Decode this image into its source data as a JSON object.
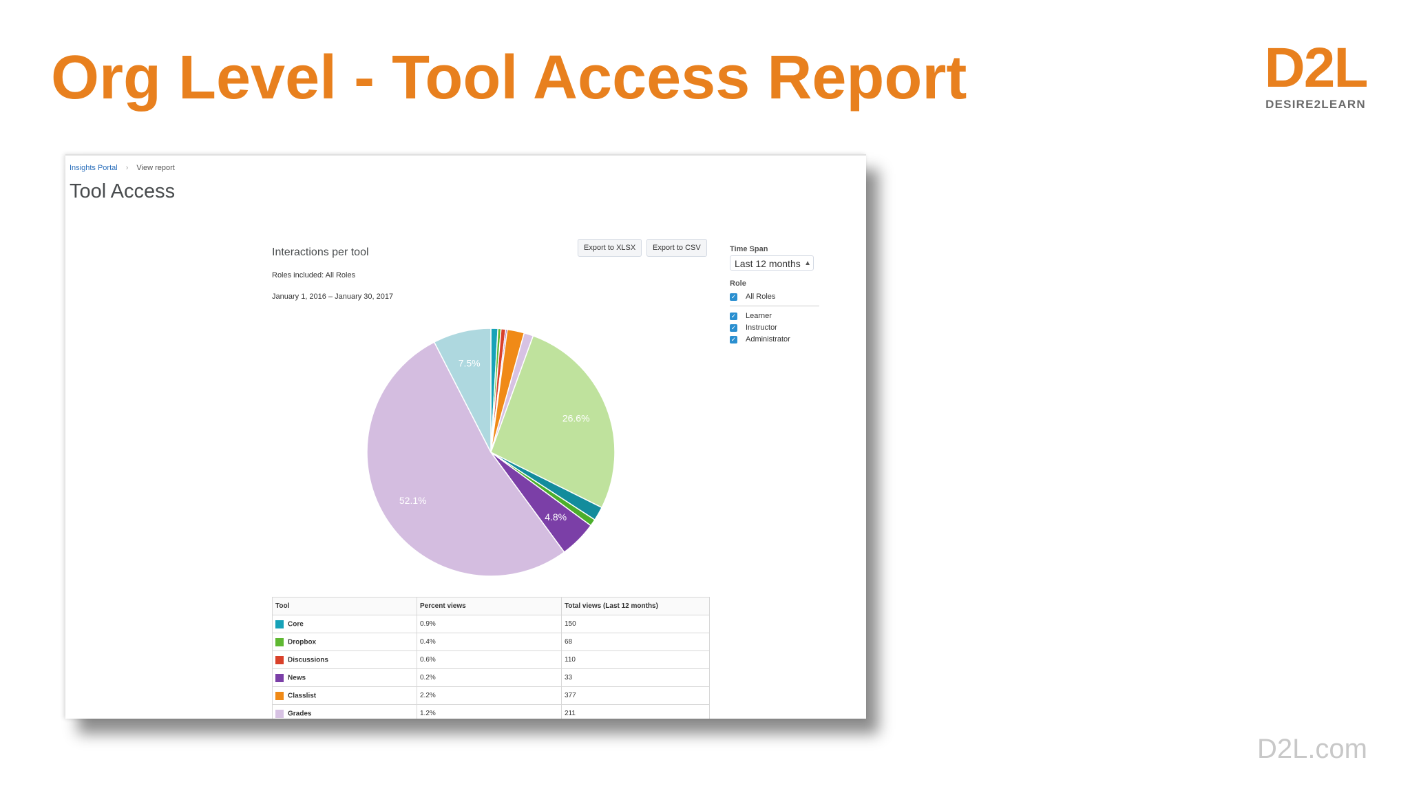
{
  "slide": {
    "title": "Org Level - Tool Access Report",
    "logo": {
      "mark": "D2L",
      "tagline": "DESIRE2LEARN"
    },
    "footer_url": "D2L.com"
  },
  "breadcrumb": {
    "portal_link": "Insights Portal",
    "current": "View report"
  },
  "page_heading": "Tool Access",
  "report": {
    "chart_title": "Interactions per tool",
    "roles_included": "Roles included: All Roles",
    "date_range": "January 1, 2016 – January 30, 2017",
    "export_xlsx_label": "Export to XLSX",
    "export_csv_label": "Export to CSV"
  },
  "filters": {
    "time_span_label": "Time Span",
    "time_span_value": "Last 12 months",
    "role_label": "Role",
    "roles": [
      {
        "label": "All Roles",
        "checked": true
      },
      {
        "label": "Learner",
        "checked": true
      },
      {
        "label": "Instructor",
        "checked": true
      },
      {
        "label": "Administrator",
        "checked": true
      }
    ]
  },
  "chart_data": {
    "type": "pie",
    "slices": [
      {
        "value": 0.9,
        "color": "#17a2b8"
      },
      {
        "value": 0.4,
        "color": "#5fb832"
      },
      {
        "value": 0.6,
        "color": "#d9412a"
      },
      {
        "value": 0.2,
        "color": "#7b3fa7"
      },
      {
        "value": 2.2,
        "color": "#f08a17"
      },
      {
        "value": 1.2,
        "color": "#d7c2e3"
      },
      {
        "value": 26.6,
        "color": "#bfe29d",
        "label": "26.6%"
      },
      {
        "value": 1.8,
        "color": "#138c9c"
      },
      {
        "value": 0.9,
        "color": "#4cae2b"
      },
      {
        "value": 4.8,
        "color": "#7b3fa7",
        "label": "4.8%"
      },
      {
        "value": 52.1,
        "color": "#d4bde0",
        "label": "52.1%"
      },
      {
        "value": 7.5,
        "color": "#aed8df",
        "label": "7.5%"
      }
    ]
  },
  "table": {
    "headers": [
      "Tool",
      "Percent views",
      "Total views (Last 12 months)"
    ],
    "rows": [
      {
        "tool": "Core",
        "percent": "0.9%",
        "total": "150",
        "color": "#17a2b8"
      },
      {
        "tool": "Dropbox",
        "percent": "0.4%",
        "total": "68",
        "color": "#5fb832"
      },
      {
        "tool": "Discussions",
        "percent": "0.6%",
        "total": "110",
        "color": "#d9412a"
      },
      {
        "tool": "News",
        "percent": "0.2%",
        "total": "33",
        "color": "#7b3fa7"
      },
      {
        "tool": "Classlist",
        "percent": "2.2%",
        "total": "377",
        "color": "#f08a17"
      },
      {
        "tool": "Grades",
        "percent": "1.2%",
        "total": "211",
        "color": "#d7c2e3"
      }
    ]
  },
  "colors": {
    "accent": "#e8801e",
    "link": "#2a6ebb",
    "checkbox": "#2a8fd0"
  }
}
